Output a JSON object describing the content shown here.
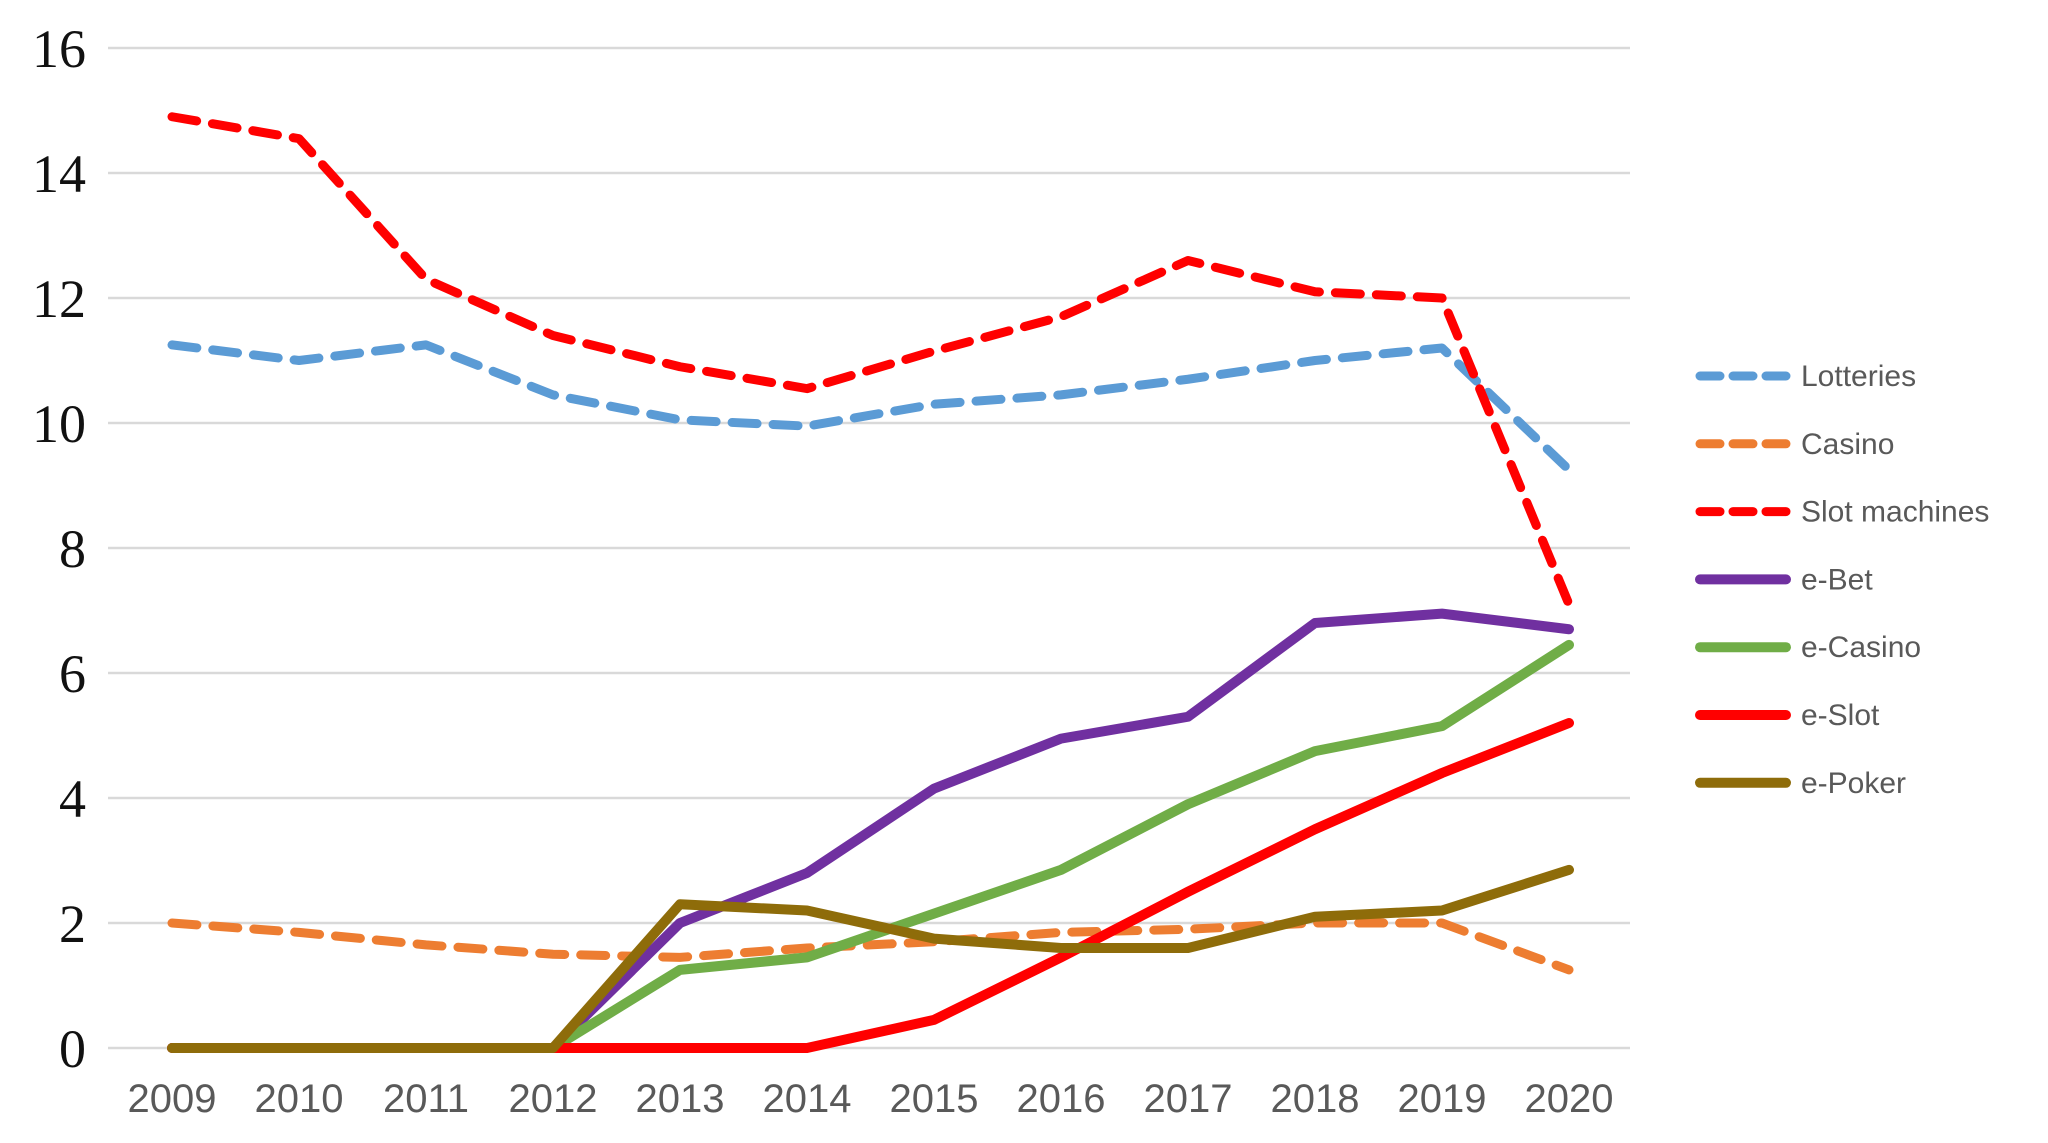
{
  "chart_data": {
    "type": "line",
    "title": "",
    "xlabel": "",
    "ylabel": "",
    "categories": [
      "2009",
      "2010",
      "2011",
      "2012",
      "2013",
      "2014",
      "2015",
      "2016",
      "2017",
      "2018",
      "2019",
      "2020"
    ],
    "ylim": [
      0,
      16
    ],
    "y_ticks": [
      0,
      2,
      4,
      6,
      8,
      10,
      12,
      14,
      16
    ],
    "grid": true,
    "legend_position": "right",
    "series": [
      {
        "name": "Lotteries",
        "color": "#5B9BD5",
        "dashed": true,
        "values": [
          11.25,
          11.0,
          11.25,
          10.45,
          10.05,
          9.95,
          10.3,
          10.45,
          10.7,
          11.0,
          11.2,
          9.25
        ]
      },
      {
        "name": "Casino",
        "color": "#ED7D31",
        "dashed": true,
        "values": [
          2.0,
          1.85,
          1.65,
          1.5,
          1.45,
          1.6,
          1.7,
          1.85,
          1.9,
          2.0,
          2.0,
          1.25
        ]
      },
      {
        "name": "Slot machines",
        "color": "#FF0000",
        "dashed": true,
        "values": [
          14.9,
          14.55,
          12.3,
          11.4,
          10.9,
          10.55,
          11.15,
          11.7,
          12.6,
          12.1,
          12.0,
          7.1
        ]
      },
      {
        "name": "e-Bet",
        "color": "#7030A0",
        "dashed": false,
        "values": [
          0,
          0,
          0,
          0,
          2.0,
          2.8,
          4.15,
          4.95,
          5.3,
          6.8,
          6.95,
          6.7
        ]
      },
      {
        "name": "e-Casino",
        "color": "#70AD47",
        "dashed": false,
        "values": [
          0,
          0,
          0,
          0,
          1.25,
          1.45,
          2.15,
          2.85,
          3.9,
          4.75,
          5.15,
          6.45
        ]
      },
      {
        "name": "e-Slot",
        "color": "#FF0000",
        "dashed": false,
        "values": [
          0,
          0,
          0,
          0,
          0,
          0,
          0.45,
          1.45,
          2.5,
          3.5,
          4.4,
          5.2
        ]
      },
      {
        "name": "e-Poker",
        "color": "#8E6C0A",
        "dashed": false,
        "values": [
          0,
          0,
          0,
          0,
          2.3,
          2.2,
          1.75,
          1.6,
          1.6,
          2.1,
          2.2,
          2.85
        ]
      }
    ],
    "colors": {
      "grid": "#D9D9D9",
      "y_label": "#111111",
      "x_label": "#595959",
      "legend_label": "#595959"
    }
  }
}
